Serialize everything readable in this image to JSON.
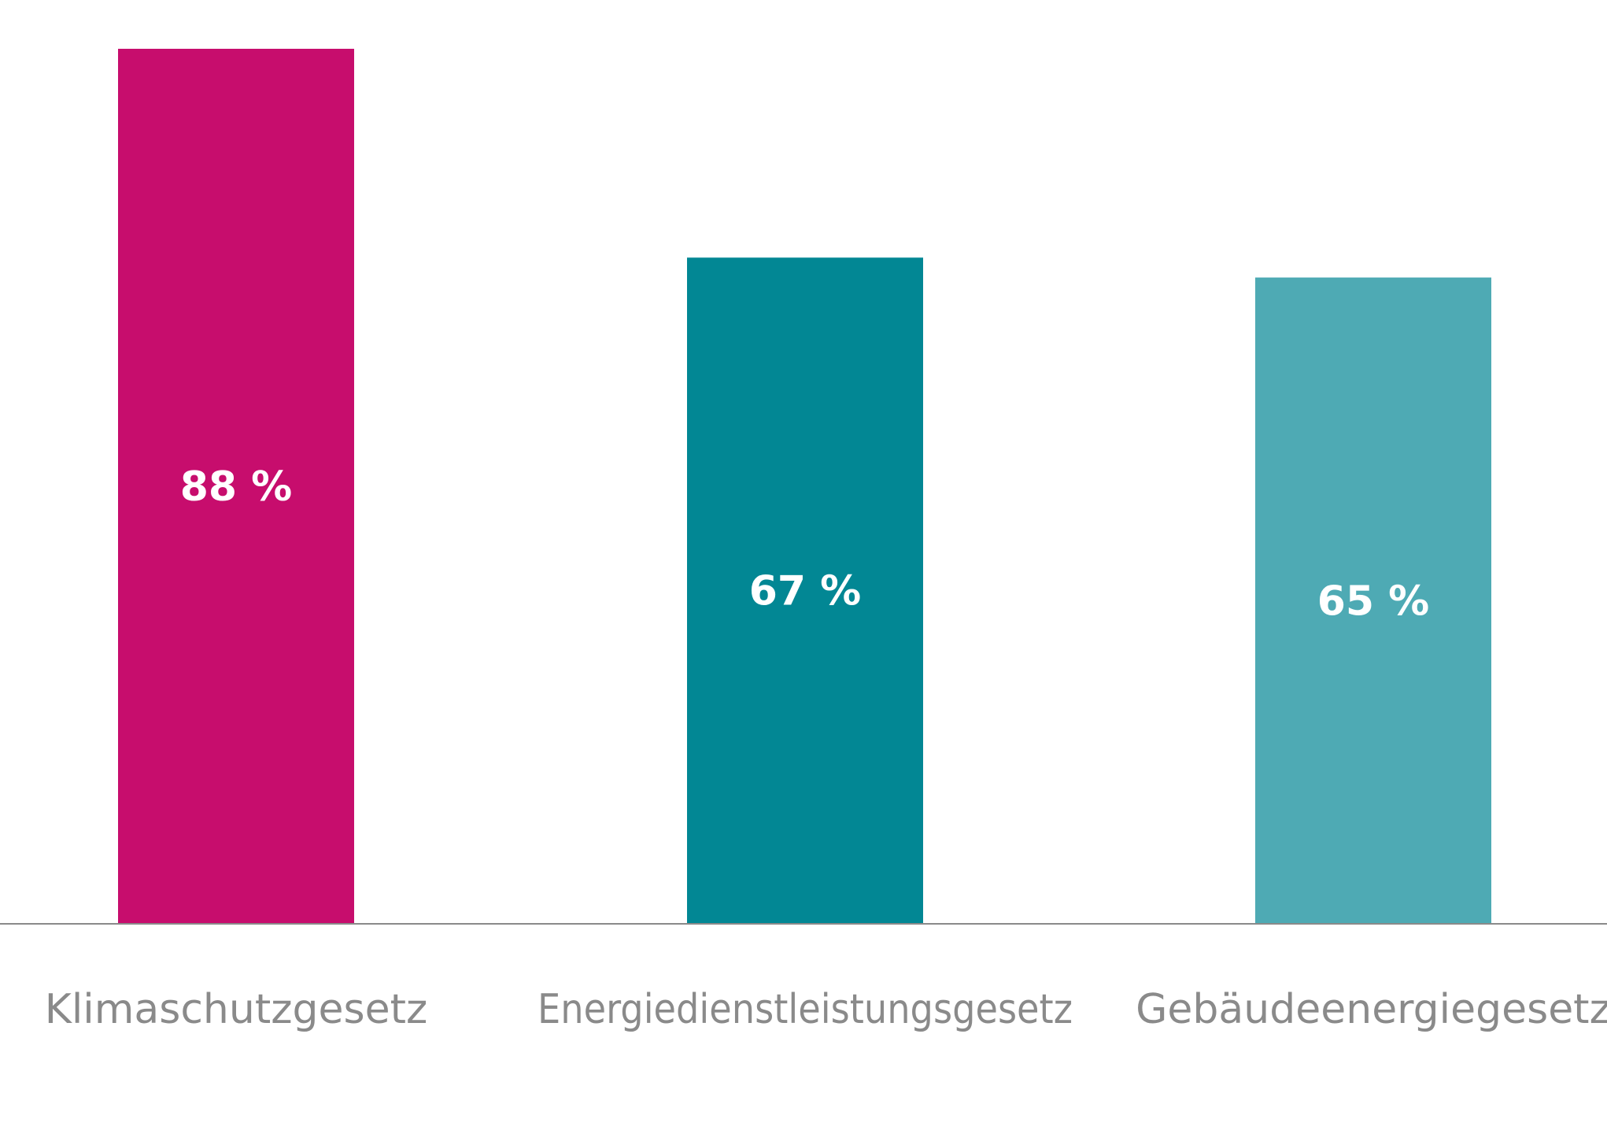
{
  "chart_data": {
    "type": "bar",
    "categories": [
      "Klimaschutzgesetz",
      "Energiedienstleistungsgesetz",
      "Gebäudeenergiegesetz"
    ],
    "values": [
      88,
      67,
      65
    ],
    "value_labels": [
      "88 %",
      "67 %",
      "65 %"
    ],
    "colors": [
      "#c70d6d",
      "#028794",
      "#4eaab4"
    ],
    "label_color": "#ffffff",
    "category_label_color": "#8a8a8a",
    "axis_color": "#8a8a8a",
    "ylim": [
      0,
      90
    ],
    "grid": false,
    "legend": "none"
  }
}
